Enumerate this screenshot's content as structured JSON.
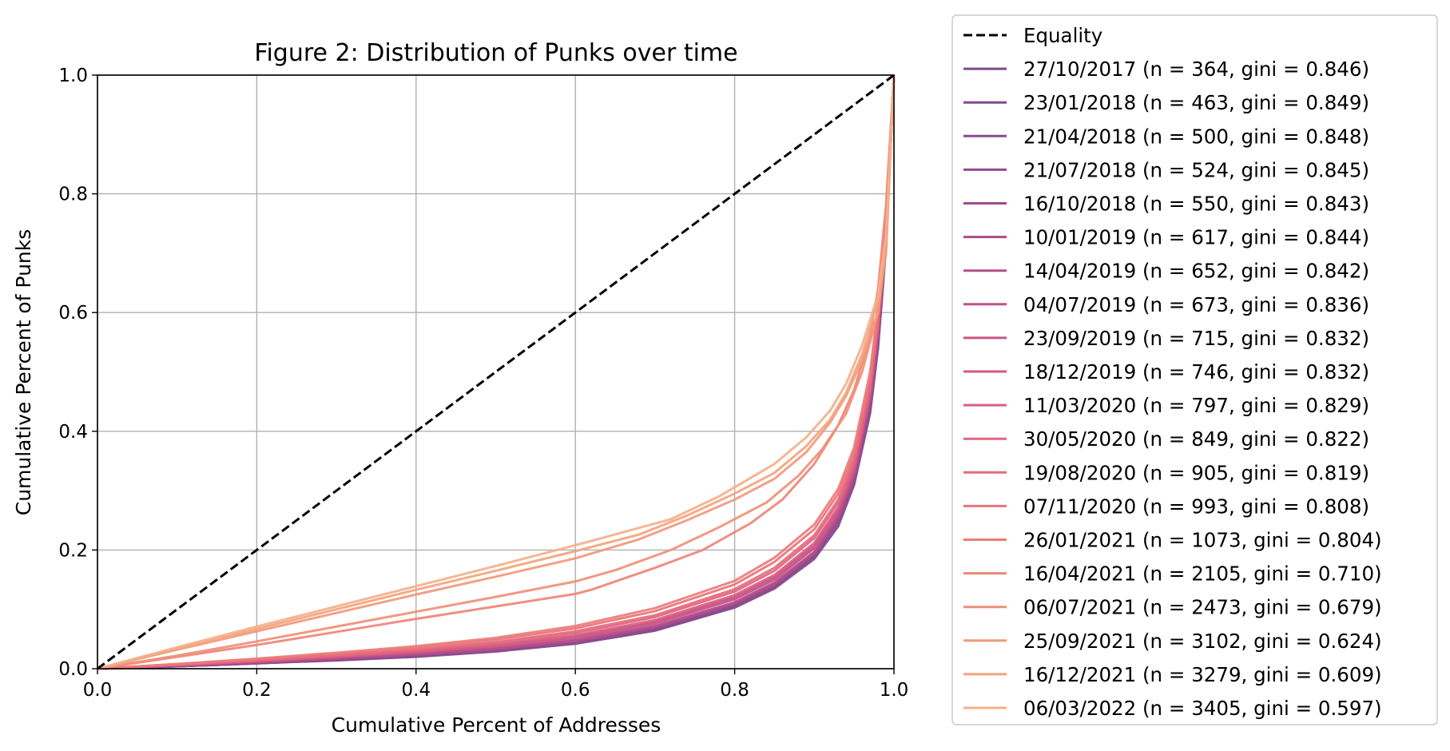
{
  "chart_data": {
    "type": "line",
    "title": "Figure 2: Distribution of Punks over time",
    "xlabel": "Cumulative Percent of Addresses",
    "ylabel": "Cumulative Percent of Punks",
    "xlim": [
      0.0,
      1.0
    ],
    "ylim": [
      0.0,
      1.0
    ],
    "xticks": [
      "0.0",
      "0.2",
      "0.4",
      "0.6",
      "0.8",
      "1.0"
    ],
    "yticks": [
      "0.0",
      "0.2",
      "0.4",
      "0.6",
      "0.8",
      "1.0"
    ],
    "grid": true,
    "legend_position": "outside-right",
    "equality": {
      "name": "Equality",
      "color": "#000000",
      "dash": true,
      "x": [
        0.0,
        1.0
      ],
      "y": [
        0.0,
        1.0
      ]
    },
    "series": [
      {
        "name": "27/10/2017 (n = 364, gini = 0.846)",
        "color": "#7b4a87",
        "x": [
          0,
          0.1,
          0.2,
          0.3,
          0.4,
          0.5,
          0.6,
          0.7,
          0.8,
          0.85,
          0.9,
          0.93,
          0.95,
          0.97,
          0.98,
          0.99,
          1.0
        ],
        "y": [
          0,
          0.004,
          0.009,
          0.015,
          0.021,
          0.03,
          0.043,
          0.065,
          0.105,
          0.138,
          0.19,
          0.25,
          0.32,
          0.44,
          0.55,
          0.72,
          1.0
        ]
      },
      {
        "name": "23/01/2018 (n = 463, gini = 0.849)",
        "color": "#814a8a",
        "x": [
          0,
          0.1,
          0.2,
          0.3,
          0.4,
          0.5,
          0.6,
          0.7,
          0.8,
          0.85,
          0.9,
          0.93,
          0.95,
          0.97,
          0.98,
          0.99,
          1.0
        ],
        "y": [
          0,
          0.004,
          0.009,
          0.014,
          0.02,
          0.029,
          0.042,
          0.064,
          0.103,
          0.135,
          0.185,
          0.24,
          0.31,
          0.43,
          0.54,
          0.71,
          1.0
        ]
      },
      {
        "name": "21/04/2018 (n = 500, gini = 0.848)",
        "color": "#8a4a8c",
        "x": [
          0,
          0.1,
          0.2,
          0.3,
          0.4,
          0.5,
          0.6,
          0.7,
          0.8,
          0.85,
          0.9,
          0.93,
          0.95,
          0.97,
          0.98,
          0.99,
          1.0
        ],
        "y": [
          0,
          0.004,
          0.009,
          0.015,
          0.021,
          0.03,
          0.043,
          0.066,
          0.105,
          0.137,
          0.188,
          0.245,
          0.315,
          0.44,
          0.55,
          0.72,
          1.0
        ]
      },
      {
        "name": "21/07/2018 (n = 524, gini = 0.845)",
        "color": "#954a8d",
        "x": [
          0,
          0.1,
          0.2,
          0.3,
          0.4,
          0.5,
          0.6,
          0.7,
          0.8,
          0.85,
          0.9,
          0.93,
          0.95,
          0.97,
          0.98,
          0.99,
          1.0
        ],
        "y": [
          0,
          0.005,
          0.01,
          0.016,
          0.022,
          0.031,
          0.045,
          0.068,
          0.108,
          0.14,
          0.192,
          0.25,
          0.32,
          0.45,
          0.56,
          0.73,
          1.0
        ]
      },
      {
        "name": "16/10/2018 (n = 550, gini = 0.843)",
        "color": "#a04b8d",
        "x": [
          0,
          0.1,
          0.2,
          0.3,
          0.4,
          0.5,
          0.6,
          0.7,
          0.8,
          0.85,
          0.9,
          0.93,
          0.95,
          0.97,
          0.98,
          0.99,
          1.0
        ],
        "y": [
          0,
          0.005,
          0.011,
          0.017,
          0.024,
          0.033,
          0.047,
          0.07,
          0.11,
          0.143,
          0.195,
          0.255,
          0.325,
          0.45,
          0.56,
          0.73,
          1.0
        ]
      },
      {
        "name": "10/01/2019 (n = 617, gini = 0.844)",
        "color": "#ab4c8c",
        "x": [
          0,
          0.1,
          0.2,
          0.3,
          0.4,
          0.5,
          0.6,
          0.7,
          0.8,
          0.85,
          0.9,
          0.93,
          0.95,
          0.97,
          0.98,
          0.99,
          1.0
        ],
        "y": [
          0,
          0.005,
          0.011,
          0.017,
          0.024,
          0.033,
          0.047,
          0.07,
          0.11,
          0.142,
          0.194,
          0.253,
          0.323,
          0.45,
          0.56,
          0.73,
          1.0
        ]
      },
      {
        "name": "14/04/2019 (n = 652, gini = 0.842)",
        "color": "#b64e8a",
        "x": [
          0,
          0.1,
          0.2,
          0.3,
          0.4,
          0.5,
          0.6,
          0.7,
          0.8,
          0.85,
          0.9,
          0.93,
          0.95,
          0.97,
          0.98,
          0.99,
          1.0
        ],
        "y": [
          0,
          0.005,
          0.011,
          0.018,
          0.025,
          0.034,
          0.048,
          0.072,
          0.112,
          0.145,
          0.197,
          0.257,
          0.327,
          0.455,
          0.565,
          0.735,
          1.0
        ]
      },
      {
        "name": "04/07/2019 (n = 673, gini = 0.836)",
        "color": "#c05189",
        "x": [
          0,
          0.1,
          0.2,
          0.3,
          0.4,
          0.5,
          0.6,
          0.7,
          0.8,
          0.85,
          0.9,
          0.93,
          0.95,
          0.97,
          0.98,
          0.99,
          1.0
        ],
        "y": [
          0,
          0.006,
          0.012,
          0.019,
          0.027,
          0.037,
          0.051,
          0.076,
          0.117,
          0.15,
          0.203,
          0.263,
          0.333,
          0.46,
          0.57,
          0.74,
          1.0
        ]
      },
      {
        "name": "23/09/2019 (n = 715, gini = 0.832)",
        "color": "#c95587",
        "x": [
          0,
          0.1,
          0.2,
          0.3,
          0.4,
          0.5,
          0.6,
          0.7,
          0.8,
          0.85,
          0.9,
          0.93,
          0.95,
          0.97,
          0.98,
          0.99,
          1.0
        ],
        "y": [
          0,
          0.006,
          0.013,
          0.02,
          0.028,
          0.039,
          0.054,
          0.079,
          0.12,
          0.154,
          0.207,
          0.267,
          0.337,
          0.465,
          0.575,
          0.74,
          1.0
        ]
      },
      {
        "name": "18/12/2019 (n = 746, gini = 0.832)",
        "color": "#d15985",
        "x": [
          0,
          0.1,
          0.2,
          0.3,
          0.4,
          0.5,
          0.6,
          0.7,
          0.8,
          0.85,
          0.9,
          0.93,
          0.95,
          0.97,
          0.98,
          0.99,
          1.0
        ],
        "y": [
          0,
          0.006,
          0.013,
          0.02,
          0.028,
          0.039,
          0.054,
          0.079,
          0.121,
          0.155,
          0.208,
          0.268,
          0.338,
          0.465,
          0.575,
          0.74,
          1.0
        ]
      },
      {
        "name": "11/03/2020 (n = 797, gini = 0.829)",
        "color": "#d95e83",
        "x": [
          0,
          0.1,
          0.2,
          0.3,
          0.4,
          0.5,
          0.6,
          0.7,
          0.8,
          0.85,
          0.9,
          0.93,
          0.95,
          0.97,
          0.98,
          0.99,
          1.0
        ],
        "y": [
          0,
          0.006,
          0.013,
          0.021,
          0.029,
          0.04,
          0.056,
          0.082,
          0.124,
          0.158,
          0.212,
          0.272,
          0.342,
          0.47,
          0.58,
          0.745,
          1.0
        ]
      },
      {
        "name": "30/05/2020 (n = 849, gini = 0.822)",
        "color": "#e0647f",
        "x": [
          0,
          0.1,
          0.2,
          0.3,
          0.4,
          0.5,
          0.6,
          0.7,
          0.8,
          0.85,
          0.9,
          0.93,
          0.95,
          0.97,
          0.98,
          0.99,
          1.0
        ],
        "y": [
          0,
          0.007,
          0.014,
          0.022,
          0.031,
          0.043,
          0.06,
          0.087,
          0.13,
          0.165,
          0.22,
          0.28,
          0.35,
          0.475,
          0.585,
          0.75,
          1.0
        ]
      },
      {
        "name": "19/08/2020 (n = 905, gini = 0.819)",
        "color": "#e56b7c",
        "x": [
          0,
          0.1,
          0.2,
          0.3,
          0.4,
          0.5,
          0.6,
          0.7,
          0.8,
          0.85,
          0.9,
          0.93,
          0.95,
          0.97,
          0.98,
          0.99,
          1.0
        ],
        "y": [
          0,
          0.007,
          0.015,
          0.023,
          0.033,
          0.045,
          0.063,
          0.09,
          0.134,
          0.17,
          0.225,
          0.285,
          0.355,
          0.48,
          0.59,
          0.755,
          1.0
        ]
      },
      {
        "name": "07/11/2020 (n = 993, gini = 0.808)",
        "color": "#e9737a",
        "x": [
          0,
          0.1,
          0.2,
          0.3,
          0.4,
          0.5,
          0.6,
          0.7,
          0.8,
          0.85,
          0.9,
          0.93,
          0.95,
          0.97,
          0.98,
          0.99,
          1.0
        ],
        "y": [
          0,
          0.008,
          0.016,
          0.025,
          0.036,
          0.049,
          0.068,
          0.097,
          0.142,
          0.18,
          0.235,
          0.295,
          0.365,
          0.49,
          0.6,
          0.76,
          1.0
        ]
      },
      {
        "name": "26/01/2021 (n = 1073, gini = 0.804)",
        "color": "#ec7c78",
        "x": [
          0,
          0.1,
          0.2,
          0.3,
          0.4,
          0.5,
          0.6,
          0.7,
          0.8,
          0.85,
          0.9,
          0.93,
          0.95,
          0.97,
          0.98,
          0.99,
          1.0
        ],
        "y": [
          0,
          0.008,
          0.017,
          0.027,
          0.038,
          0.052,
          0.072,
          0.102,
          0.148,
          0.187,
          0.243,
          0.303,
          0.373,
          0.5,
          0.61,
          0.765,
          1.0
        ]
      },
      {
        "name": "16/04/2021 (n = 2105, gini = 0.710)",
        "color": "#ee8677",
        "x": [
          0,
          0.1,
          0.2,
          0.3,
          0.4,
          0.5,
          0.6,
          0.62,
          0.7,
          0.76,
          0.82,
          0.86,
          0.9,
          0.93,
          0.95,
          0.97,
          0.98,
          0.99,
          1.0
        ],
        "y": [
          0,
          0.02,
          0.04,
          0.062,
          0.084,
          0.105,
          0.126,
          0.133,
          0.17,
          0.2,
          0.245,
          0.285,
          0.345,
          0.41,
          0.47,
          0.56,
          0.64,
          0.78,
          1.0
        ]
      },
      {
        "name": "06/07/2021 (n = 2473, gini = 0.679)",
        "color": "#f08f78",
        "x": [
          0,
          0.1,
          0.2,
          0.3,
          0.4,
          0.5,
          0.6,
          0.65,
          0.72,
          0.78,
          0.84,
          0.88,
          0.91,
          0.94,
          0.96,
          0.98,
          0.99,
          1.0
        ],
        "y": [
          0,
          0.022,
          0.046,
          0.071,
          0.096,
          0.121,
          0.147,
          0.166,
          0.2,
          0.238,
          0.28,
          0.325,
          0.37,
          0.43,
          0.5,
          0.6,
          0.73,
          1.0
        ]
      },
      {
        "name": "25/09/2021 (n = 3102, gini = 0.624)",
        "color": "#f2997b",
        "x": [
          0,
          0.1,
          0.2,
          0.3,
          0.4,
          0.5,
          0.6,
          0.68,
          0.74,
          0.8,
          0.85,
          0.89,
          0.92,
          0.94,
          0.96,
          0.98,
          0.99,
          1.0
        ],
        "y": [
          0,
          0.032,
          0.063,
          0.094,
          0.125,
          0.155,
          0.186,
          0.218,
          0.25,
          0.285,
          0.32,
          0.365,
          0.415,
          0.46,
          0.52,
          0.6,
          0.7,
          1.0
        ]
      },
      {
        "name": "16/12/2021 (n = 3279, gini = 0.609)",
        "color": "#f3a47f",
        "x": [
          0,
          0.1,
          0.2,
          0.3,
          0.4,
          0.5,
          0.6,
          0.68,
          0.74,
          0.8,
          0.85,
          0.89,
          0.92,
          0.94,
          0.96,
          0.98,
          0.99,
          1.0
        ],
        "y": [
          0,
          0.034,
          0.067,
          0.1,
          0.133,
          0.165,
          0.198,
          0.226,
          0.258,
          0.295,
          0.33,
          0.375,
          0.42,
          0.465,
          0.53,
          0.62,
          0.72,
          1.0
        ]
      },
      {
        "name": "06/03/2022 (n = 3405, gini = 0.597)",
        "color": "#f4b08a",
        "x": [
          0,
          0.1,
          0.2,
          0.3,
          0.4,
          0.5,
          0.6,
          0.72,
          0.78,
          0.85,
          0.89,
          0.92,
          0.94,
          0.96,
          0.98,
          0.99,
          1.0
        ],
        "y": [
          0,
          0.036,
          0.071,
          0.105,
          0.139,
          0.173,
          0.208,
          0.252,
          0.29,
          0.345,
          0.39,
          0.435,
          0.48,
          0.545,
          0.63,
          0.73,
          1.0
        ]
      }
    ]
  }
}
